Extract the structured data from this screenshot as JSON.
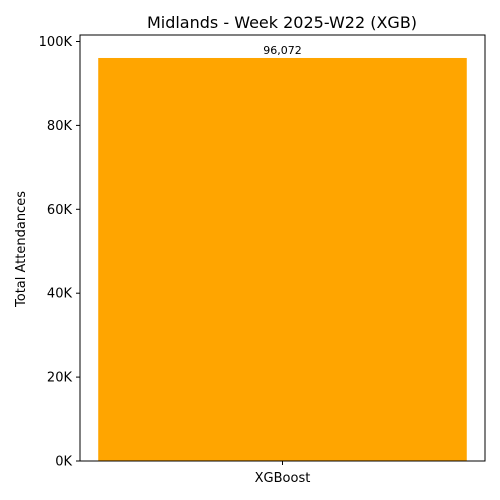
{
  "chart_data": {
    "type": "bar",
    "title": "Midlands - Week 2025-W22 (XGB)",
    "xlabel": "",
    "ylabel": "Total Attendances",
    "categories": [
      "XGBoost"
    ],
    "values": [
      96072
    ],
    "value_labels": [
      "96,072"
    ],
    "ylim": [
      0,
      100000
    ],
    "yticks": [
      0,
      20000,
      40000,
      60000,
      80000,
      100000
    ],
    "ytick_labels": [
      "0K",
      "20K",
      "40K",
      "60K",
      "80K",
      "100K"
    ],
    "bar_color": "#ffa500",
    "grid": false,
    "legend": "none"
  }
}
